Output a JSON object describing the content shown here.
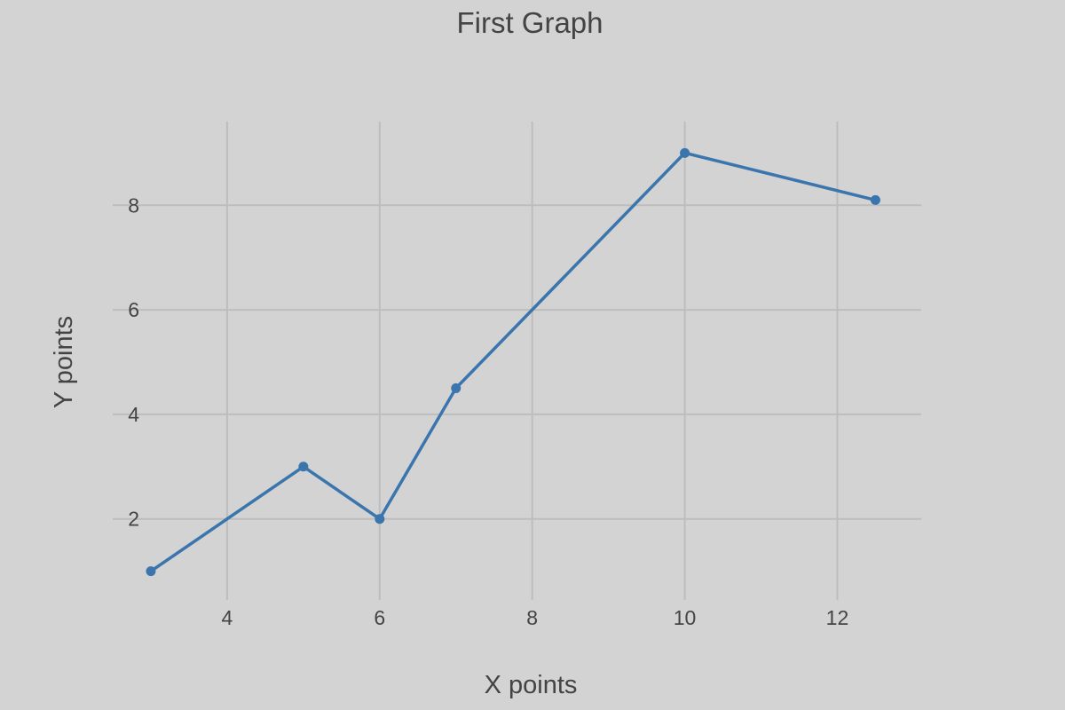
{
  "chart_data": {
    "type": "line",
    "title": "First Graph",
    "xlabel": "X points",
    "ylabel": "Y points",
    "xlim": [
      2.5,
      13.1
    ],
    "ylim": [
      0.45,
      9.6
    ],
    "xticks": [
      4,
      6,
      8,
      10,
      12
    ],
    "yticks": [
      2,
      4,
      6,
      8
    ],
    "grid": true,
    "legend": "none",
    "series": [
      {
        "x": [
          3,
          5,
          6,
          7,
          10,
          12.5
        ],
        "y": [
          1,
          3,
          2,
          4.5,
          9,
          8.1
        ],
        "color": "#3a75ae",
        "markers": true
      }
    ]
  },
  "colors": {
    "background": "#d3d3d3",
    "grid": "#bdbdbd",
    "text": "#444444"
  }
}
